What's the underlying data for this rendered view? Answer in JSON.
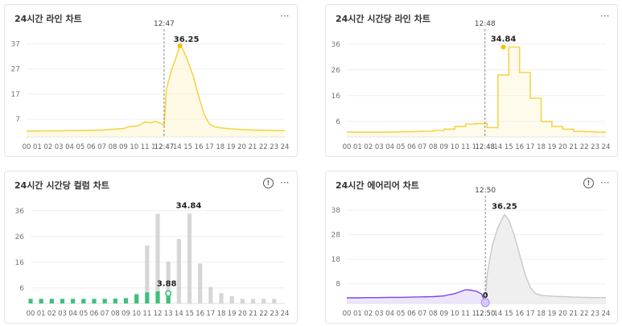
{
  "cards": [
    {
      "title": "24시간 라인 차트",
      "more": "···"
    },
    {
      "title": "24시간 시간당 라인 차트",
      "more": "···"
    },
    {
      "title": "24시간 시간당 컬럼 차트",
      "more": "···",
      "info": "!"
    },
    {
      "title": "24시간 에어리어 차트",
      "more": "···",
      "info": "!"
    }
  ],
  "chart_data": [
    {
      "type": "line",
      "x_ticks": [
        "00",
        "01",
        "02",
        "03",
        "04",
        "05",
        "06",
        "07",
        "08",
        "09",
        "10",
        "11",
        "12",
        "13",
        "14",
        "15",
        "16",
        "17",
        "18",
        "19",
        "20",
        "21",
        "22",
        "23",
        "24"
      ],
      "y_ticks": [
        7,
        17,
        27,
        37
      ],
      "ylim": [
        0,
        41
      ],
      "cursor_label": "12:47",
      "cursor_time": 12.78,
      "peak_label": "36.25",
      "peak": {
        "x": 14.25,
        "y": 36.25
      },
      "color": "#f5d44a",
      "points": [
        [
          0,
          2.3
        ],
        [
          1,
          2.3
        ],
        [
          2,
          2.4
        ],
        [
          3,
          2.4
        ],
        [
          4,
          2.5
        ],
        [
          5,
          2.5
        ],
        [
          6,
          2.6
        ],
        [
          7,
          2.7
        ],
        [
          8,
          3.0
        ],
        [
          9,
          3.3
        ],
        [
          9.5,
          4.0
        ],
        [
          10,
          4.2
        ],
        [
          10.5,
          4.6
        ],
        [
          11,
          6.0
        ],
        [
          11.5,
          5.6
        ],
        [
          12,
          6.2
        ],
        [
          12.5,
          5.3
        ],
        [
          12.78,
          4.5
        ],
        [
          13,
          19
        ],
        [
          13.5,
          27
        ],
        [
          14,
          33
        ],
        [
          14.25,
          36.25
        ],
        [
          14.5,
          35
        ],
        [
          15,
          30
        ],
        [
          15.5,
          24
        ],
        [
          16,
          16
        ],
        [
          16.5,
          9
        ],
        [
          17,
          5
        ],
        [
          17.5,
          4
        ],
        [
          18,
          3.6
        ],
        [
          19,
          3.2
        ],
        [
          20,
          2.9
        ],
        [
          21,
          2.7
        ],
        [
          22,
          2.6
        ],
        [
          23,
          2.5
        ],
        [
          24,
          2.5
        ]
      ]
    },
    {
      "type": "line",
      "x_ticks": [
        "00",
        "01",
        "02",
        "03",
        "04",
        "05",
        "06",
        "07",
        "08",
        "09",
        "10",
        "11",
        "12",
        "13",
        "14",
        "15",
        "16",
        "17",
        "18",
        "19",
        "20",
        "21",
        "22",
        "23",
        "24"
      ],
      "y_ticks": [
        6,
        16,
        26,
        36
      ],
      "ylim": [
        0,
        40
      ],
      "cursor_label": "12:48",
      "cursor_time": 12.8,
      "peak_label": "34.84",
      "peak": {
        "x": 14.5,
        "y": 34.84
      },
      "color": "#f5d44a",
      "hourly": [
        1.8,
        1.8,
        1.8,
        1.8,
        1.9,
        2.0,
        2.1,
        2.2,
        2.5,
        3.0,
        4.0,
        5.0,
        5.2,
        3.6,
        24.0,
        34.84,
        25.0,
        15.0,
        6.0,
        4.0,
        3.0,
        2.2,
        2.0,
        1.8
      ]
    },
    {
      "type": "bar",
      "x_ticks": [
        "00",
        "01",
        "02",
        "03",
        "04",
        "05",
        "06",
        "07",
        "08",
        "09",
        "10",
        "11",
        "12",
        "13",
        "14",
        "15",
        "16",
        "17",
        "18",
        "19",
        "20",
        "21",
        "22",
        "23",
        "24"
      ],
      "y_ticks": [
        6,
        16,
        26,
        36
      ],
      "ylim": [
        0,
        40
      ],
      "highlight_label": "3.88",
      "peak_label": "34.84",
      "past_color": "#3fc07a",
      "future_color": "#d6d6d6",
      "past_values": [
        1.8,
        1.8,
        1.8,
        1.8,
        1.8,
        1.8,
        1.8,
        1.8,
        1.9,
        2.1,
        3.5,
        4.3,
        4.7,
        3.88
      ],
      "future_values": [
        null,
        null,
        null,
        null,
        null,
        null,
        null,
        null,
        null,
        null,
        3.9,
        22.5,
        34.8,
        16.3,
        25.0,
        34.84,
        15.5,
        6.4,
        4.0,
        2.8,
        1.8,
        1.8,
        1.8,
        1.8
      ],
      "highlight_index": 13,
      "peak_index": 15
    },
    {
      "type": "area",
      "x_ticks": [
        "00",
        "01",
        "02",
        "03",
        "04",
        "05",
        "06",
        "07",
        "08",
        "09",
        "10",
        "11",
        "12",
        "13",
        "14",
        "15",
        "16",
        "17",
        "18",
        "19",
        "20",
        "21",
        "22",
        "23",
        "24"
      ],
      "y_ticks": [
        8,
        18,
        28,
        38
      ],
      "ylim": [
        0,
        42
      ],
      "cursor_label": "12:50",
      "cursor_time": 12.83,
      "peak_label": "36.25",
      "peak": {
        "x": 14.6,
        "y": 36.25
      },
      "current_label": "0",
      "current_value": 0,
      "past_color": "#7e45e8",
      "future_color": "#c9c9c9",
      "past_points": [
        [
          0,
          2.3
        ],
        [
          1,
          2.3
        ],
        [
          2,
          2.4
        ],
        [
          3,
          2.4
        ],
        [
          4,
          2.5
        ],
        [
          5,
          2.5
        ],
        [
          6,
          2.6
        ],
        [
          7,
          2.7
        ],
        [
          8,
          2.8
        ],
        [
          9,
          3.1
        ],
        [
          9.5,
          3.6
        ],
        [
          10,
          4.0
        ],
        [
          10.5,
          4.8
        ],
        [
          11,
          5.6
        ],
        [
          11.5,
          5.4
        ],
        [
          12,
          5.0
        ],
        [
          12.5,
          3.8
        ],
        [
          12.83,
          0
        ]
      ],
      "future_points": [
        [
          12.83,
          0
        ],
        [
          13,
          12
        ],
        [
          13.5,
          24
        ],
        [
          14,
          31
        ],
        [
          14.6,
          36.25
        ],
        [
          15,
          34
        ],
        [
          15.5,
          28
        ],
        [
          16,
          20
        ],
        [
          16.5,
          12
        ],
        [
          17,
          6.5
        ],
        [
          17.5,
          4.0
        ],
        [
          18,
          3.3
        ],
        [
          19,
          3.0
        ],
        [
          20,
          2.8
        ],
        [
          21,
          2.6
        ],
        [
          22,
          2.5
        ],
        [
          23,
          2.4
        ],
        [
          24,
          2.4
        ]
      ]
    }
  ]
}
